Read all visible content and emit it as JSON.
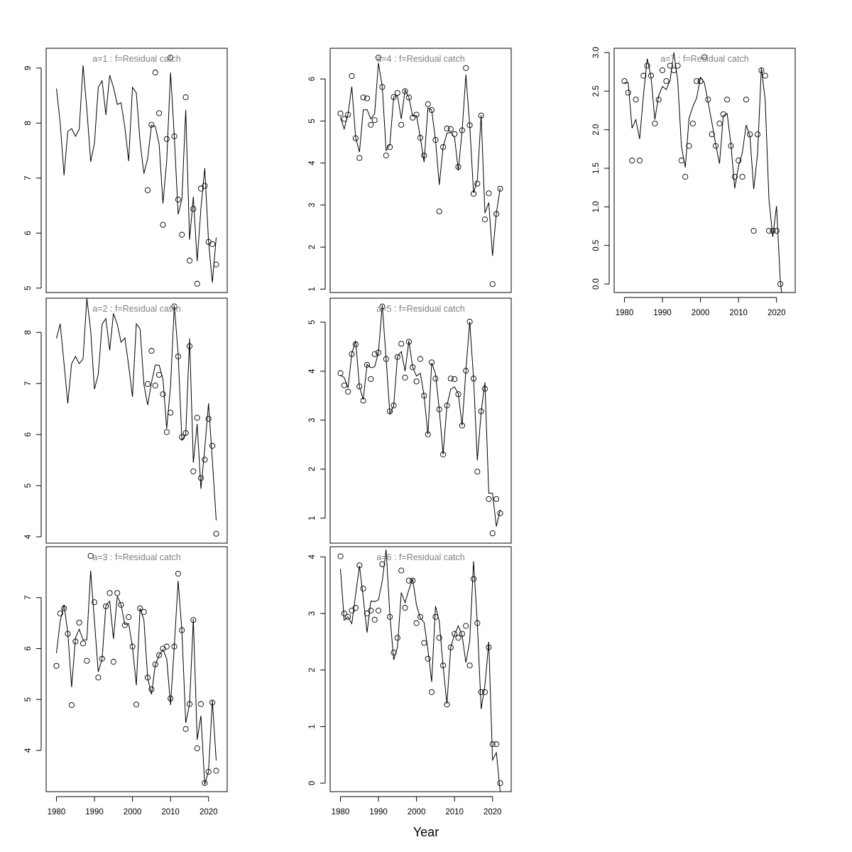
{
  "chart_data": {
    "type": "line",
    "layout": "multi-panel",
    "xlabel": "Year",
    "x_ticks": [
      1980,
      1990,
      2000,
      2010,
      2020
    ],
    "xlim": [
      1977.3,
      2024.9
    ],
    "years": [
      1980,
      1981,
      1982,
      1983,
      1984,
      1985,
      1986,
      1987,
      1988,
      1989,
      1990,
      1991,
      1992,
      1993,
      1994,
      1995,
      1996,
      1997,
      1998,
      1999,
      2000,
      2001,
      2002,
      2003,
      2004,
      2005,
      2006,
      2007,
      2008,
      2009,
      2010,
      2011,
      2012,
      2013,
      2014,
      2015,
      2016,
      2017,
      2018,
      2019,
      2020,
      2021,
      2022
    ],
    "panels": [
      {
        "title": "a=1  :  f=Residual catch",
        "ylim": [
          4.92,
          9.36
        ],
        "y_ticks": [
          5,
          6,
          7,
          8,
          9
        ],
        "show_x_axis": false,
        "fitted": [
          8.63,
          8.0,
          7.05,
          7.85,
          7.9,
          7.76,
          7.89,
          9.05,
          8.26,
          7.3,
          7.63,
          8.65,
          8.77,
          8.15,
          8.87,
          8.65,
          8.34,
          8.37,
          7.92,
          7.31,
          8.65,
          8.55,
          7.66,
          7.08,
          7.36,
          7.96,
          7.94,
          7.62,
          6.54,
          7.31,
          8.92,
          7.76,
          6.34,
          6.62,
          8.24,
          5.88,
          6.66,
          5.49,
          6.45,
          7.18,
          5.85,
          5.1,
          5.92
        ],
        "observed": [
          null,
          null,
          null,
          null,
          null,
          null,
          null,
          null,
          null,
          null,
          null,
          null,
          null,
          null,
          null,
          null,
          null,
          null,
          null,
          null,
          null,
          null,
          null,
          null,
          6.78,
          7.97,
          8.92,
          8.18,
          6.15,
          7.71,
          9.19,
          7.76,
          6.61,
          5.97,
          8.47,
          5.5,
          6.44,
          5.08,
          6.81,
          6.86,
          5.84,
          5.8,
          5.43
        ]
      },
      {
        "title": "a=2  :  f=Residual catch",
        "ylim": [
          3.875,
          8.67
        ],
        "y_ticks": [
          4,
          5,
          6,
          7,
          8
        ],
        "show_x_axis": false,
        "fitted": [
          7.88,
          8.17,
          7.39,
          6.61,
          7.39,
          7.53,
          7.39,
          7.48,
          8.67,
          8.04,
          6.89,
          7.18,
          8.16,
          8.27,
          7.65,
          8.37,
          8.16,
          7.81,
          7.89,
          7.35,
          6.74,
          8.17,
          8.07,
          6.98,
          6.58,
          7.02,
          7.36,
          7.36,
          7.09,
          6.12,
          6.95,
          8.53,
          7.58,
          5.89,
          6.0,
          7.88,
          5.45,
          6.21,
          4.94,
          5.73,
          6.61,
          5.5,
          4.32
        ],
        "observed": [
          null,
          null,
          null,
          null,
          null,
          null,
          null,
          null,
          null,
          null,
          null,
          null,
          null,
          null,
          null,
          null,
          null,
          null,
          null,
          null,
          null,
          null,
          null,
          null,
          6.99,
          7.64,
          6.96,
          7.17,
          6.79,
          6.05,
          6.43,
          8.51,
          7.53,
          5.95,
          6.03,
          7.73,
          5.28,
          6.33,
          5.15,
          5.51,
          6.31,
          5.78,
          4.06
        ]
      },
      {
        "title": "a=3  :  f=Residual catch",
        "ylim": [
          3.19,
          8.0
        ],
        "y_ticks": [
          4,
          5,
          6,
          7
        ],
        "show_x_axis": true,
        "fitted": [
          5.91,
          6.54,
          6.86,
          6.31,
          5.24,
          6.21,
          6.38,
          6.17,
          6.17,
          7.53,
          6.54,
          5.54,
          5.8,
          6.84,
          6.93,
          6.19,
          7.03,
          6.86,
          6.47,
          6.49,
          6.03,
          5.28,
          6.79,
          6.56,
          5.42,
          5.1,
          5.68,
          5.87,
          5.98,
          5.8,
          4.89,
          6.05,
          7.33,
          6.35,
          4.54,
          4.91,
          6.58,
          4.21,
          4.68,
          3.33,
          3.59,
          4.98,
          3.8
        ],
        "observed": [
          5.66,
          6.69,
          6.79,
          6.29,
          4.89,
          6.14,
          6.51,
          6.1,
          5.76,
          7.82,
          6.91,
          5.43,
          5.8,
          6.83,
          7.09,
          5.74,
          7.09,
          6.86,
          6.46,
          6.62,
          6.04,
          4.9,
          6.79,
          6.72,
          5.43,
          5.2,
          5.69,
          5.87,
          6.0,
          6.04,
          5.02,
          6.04,
          7.47,
          6.36,
          4.42,
          4.91,
          6.56,
          4.04,
          4.91,
          3.36,
          3.58,
          4.94,
          3.6
        ]
      },
      {
        "title": "a=4  :  f=Residual catch",
        "ylim": [
          0.92,
          6.73
        ],
        "y_ticks": [
          1,
          2,
          3,
          4,
          5,
          6
        ],
        "show_x_axis": false,
        "fitted": [
          5.09,
          4.81,
          5.17,
          5.82,
          4.61,
          4.26,
          5.26,
          5.27,
          5.05,
          5.18,
          6.38,
          5.82,
          4.3,
          4.44,
          5.57,
          5.61,
          5.05,
          5.74,
          5.56,
          5.12,
          5.13,
          4.61,
          4.02,
          5.31,
          5.26,
          4.55,
          3.48,
          4.38,
          4.71,
          4.73,
          4.61,
          3.82,
          4.78,
          6.1,
          4.9,
          3.29,
          3.6,
          5.14,
          2.81,
          3.06,
          1.79,
          2.81,
          3.4
        ],
        "observed": [
          5.18,
          5.05,
          5.15,
          6.07,
          4.59,
          4.12,
          5.56,
          5.54,
          4.91,
          5.02,
          6.51,
          5.81,
          4.18,
          4.38,
          5.57,
          5.67,
          4.91,
          5.71,
          5.56,
          5.08,
          5.15,
          4.6,
          4.18,
          5.4,
          5.26,
          4.55,
          2.85,
          4.38,
          4.82,
          4.81,
          4.69,
          3.91,
          4.78,
          6.26,
          4.9,
          3.27,
          3.51,
          5.13,
          2.66,
          3.28,
          1.12,
          2.79,
          3.39
        ]
      },
      {
        "title": "a=5  :  f=Residual catch",
        "ylim": [
          0.49,
          5.49
        ],
        "y_ticks": [
          1,
          2,
          3,
          4,
          5
        ],
        "show_x_axis": false,
        "fitted": [
          3.92,
          3.87,
          3.66,
          4.36,
          4.62,
          3.68,
          3.42,
          4.14,
          4.07,
          4.09,
          4.38,
          5.35,
          4.26,
          3.13,
          3.29,
          4.3,
          4.4,
          4.0,
          4.62,
          4.08,
          3.9,
          3.96,
          3.5,
          2.71,
          4.17,
          3.95,
          3.22,
          2.3,
          3.3,
          3.63,
          3.68,
          3.54,
          2.89,
          4.02,
          5.01,
          3.85,
          2.18,
          3.17,
          3.77,
          1.51,
          1.51,
          0.83,
          1.17
        ],
        "observed": [
          3.96,
          3.71,
          3.58,
          4.35,
          4.55,
          3.69,
          3.4,
          4.13,
          3.84,
          4.35,
          4.38,
          5.32,
          4.25,
          3.18,
          3.3,
          4.29,
          4.56,
          3.87,
          4.6,
          4.08,
          3.79,
          4.25,
          3.5,
          2.71,
          4.18,
          3.85,
          3.22,
          2.3,
          3.3,
          3.85,
          3.84,
          3.53,
          2.89,
          4.01,
          5.01,
          3.85,
          1.95,
          3.18,
          3.64,
          1.39,
          0.69,
          1.39,
          1.1
        ]
      },
      {
        "title": "a=6  :  f=Residual catch",
        "ylim": [
          -0.15,
          4.18
        ],
        "y_ticks": [
          0,
          1,
          2,
          3,
          4
        ],
        "show_x_axis": true,
        "fitted": [
          3.79,
          2.88,
          2.94,
          2.82,
          3.34,
          3.84,
          3.28,
          2.66,
          3.22,
          3.21,
          3.24,
          3.57,
          4.13,
          2.98,
          2.18,
          2.4,
          3.37,
          3.19,
          3.42,
          3.61,
          3.15,
          2.92,
          2.84,
          2.36,
          1.79,
          3.13,
          2.86,
          2.06,
          1.4,
          2.4,
          2.63,
          2.78,
          2.61,
          2.13,
          2.52,
          3.92,
          2.82,
          1.31,
          1.73,
          2.5,
          0.41,
          0.54,
          -0.15
        ],
        "observed": [
          4.01,
          3.0,
          2.94,
          3.05,
          3.1,
          3.85,
          3.44,
          3.0,
          3.05,
          2.89,
          3.05,
          3.87,
          null,
          2.94,
          2.31,
          2.57,
          3.76,
          3.1,
          3.58,
          3.58,
          2.83,
          2.94,
          2.48,
          2.2,
          1.61,
          2.94,
          2.57,
          2.08,
          1.39,
          2.4,
          2.64,
          2.57,
          2.64,
          2.78,
          2.08,
          3.61,
          2.83,
          1.61,
          1.61,
          2.4,
          0.69,
          0.69,
          0.0
        ]
      },
      {
        "title": "a=7  :  f=Residual catch",
        "ylim": [
          -0.11,
          3.055
        ],
        "y_ticks": [
          0.0,
          0.5,
          1.0,
          1.5,
          2.0,
          2.5,
          3.0
        ],
        "show_x_axis": true,
        "fitted": [
          2.61,
          2.61,
          2.02,
          2.13,
          1.88,
          2.45,
          2.92,
          2.68,
          2.13,
          2.44,
          2.56,
          2.52,
          2.64,
          3.0,
          2.64,
          1.78,
          1.51,
          2.15,
          2.3,
          2.41,
          2.68,
          2.61,
          2.36,
          2.09,
          1.81,
          1.56,
          2.18,
          2.21,
          1.81,
          1.24,
          1.53,
          1.7,
          2.06,
          1.92,
          1.23,
          1.69,
          2.8,
          2.39,
          1.1,
          0.61,
          1.01,
          0.03,
          -0.4
        ],
        "observed": [
          2.63,
          2.48,
          1.6,
          2.39,
          1.6,
          2.7,
          2.83,
          2.7,
          2.08,
          2.39,
          2.77,
          2.63,
          2.83,
          2.77,
          2.83,
          1.6,
          1.39,
          1.79,
          2.08,
          2.63,
          2.63,
          2.94,
          2.39,
          1.94,
          1.79,
          2.08,
          2.2,
          2.39,
          1.79,
          1.39,
          1.6,
          1.39,
          2.39,
          1.94,
          0.69,
          1.94,
          2.77,
          2.7,
          0.69,
          0.69,
          0.69,
          0.0,
          null
        ]
      }
    ]
  }
}
